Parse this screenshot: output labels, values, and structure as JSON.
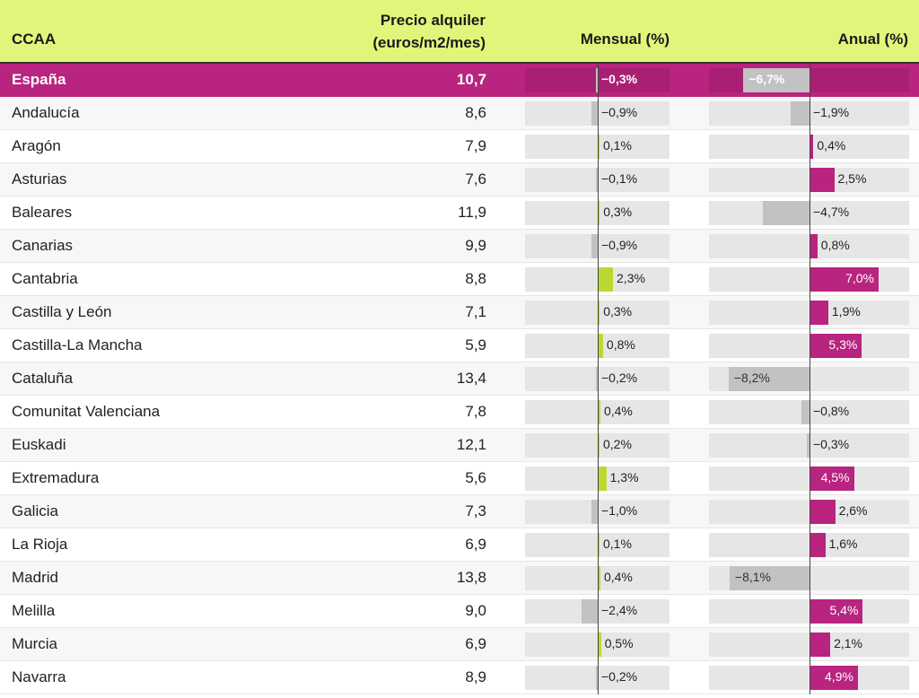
{
  "header": {
    "ccaa": "CCAA",
    "price_line1": "Precio alquiler",
    "price_line2": "(euros/m2/mes)",
    "monthly": "Mensual (%)",
    "annual": "Anual (%)"
  },
  "colors": {
    "header_bg": "#e2f57b",
    "highlight": "#b8247f",
    "positive_monthly": "#b9d930",
    "positive_annual": "#b8247f",
    "negative": "#c2c2c2"
  },
  "chart_data": {
    "type": "table",
    "columns": [
      "CCAA",
      "Precio alquiler (euros/m2/mes)",
      "Mensual (%)",
      "Anual (%)"
    ],
    "rows": [
      {
        "name": "España",
        "price": "10,7",
        "monthly": -0.3,
        "monthly_label": "−0,3%",
        "annual": -6.7,
        "annual_label": "−6,7%",
        "highlight": true
      },
      {
        "name": "Andalucía",
        "price": "8,6",
        "monthly": -0.9,
        "monthly_label": "−0,9%",
        "annual": -1.9,
        "annual_label": "−1,9%"
      },
      {
        "name": "Aragón",
        "price": "7,9",
        "monthly": 0.1,
        "monthly_label": "0,1%",
        "annual": 0.4,
        "annual_label": "0,4%"
      },
      {
        "name": "Asturias",
        "price": "7,6",
        "monthly": -0.1,
        "monthly_label": "−0,1%",
        "annual": 2.5,
        "annual_label": "2,5%"
      },
      {
        "name": "Baleares",
        "price": "11,9",
        "monthly": 0.3,
        "monthly_label": "0,3%",
        "annual": -4.7,
        "annual_label": "−4,7%"
      },
      {
        "name": "Canarias",
        "price": "9,9",
        "monthly": -0.9,
        "monthly_label": "−0,9%",
        "annual": 0.8,
        "annual_label": "0,8%"
      },
      {
        "name": "Cantabria",
        "price": "8,8",
        "monthly": 2.3,
        "monthly_label": "2,3%",
        "annual": 7.0,
        "annual_label": "7,0%"
      },
      {
        "name": "Castilla y León",
        "price": "7,1",
        "monthly": 0.3,
        "monthly_label": "0,3%",
        "annual": 1.9,
        "annual_label": "1,9%"
      },
      {
        "name": "Castilla-La Mancha",
        "price": "5,9",
        "monthly": 0.8,
        "monthly_label": "0,8%",
        "annual": 5.3,
        "annual_label": "5,3%"
      },
      {
        "name": "Cataluña",
        "price": "13,4",
        "monthly": -0.2,
        "monthly_label": "−0,2%",
        "annual": -8.2,
        "annual_label": "−8,2%"
      },
      {
        "name": "Comunitat Valenciana",
        "price": "7,8",
        "monthly": 0.4,
        "monthly_label": "0,4%",
        "annual": -0.8,
        "annual_label": "−0,8%"
      },
      {
        "name": "Euskadi",
        "price": "12,1",
        "monthly": 0.2,
        "monthly_label": "0,2%",
        "annual": -0.3,
        "annual_label": "−0,3%"
      },
      {
        "name": "Extremadura",
        "price": "5,6",
        "monthly": 1.3,
        "monthly_label": "1,3%",
        "annual": 4.5,
        "annual_label": "4,5%"
      },
      {
        "name": "Galicia",
        "price": "7,3",
        "monthly": -1.0,
        "monthly_label": "−1,0%",
        "annual": 2.6,
        "annual_label": "2,6%"
      },
      {
        "name": "La Rioja",
        "price": "6,9",
        "monthly": 0.1,
        "monthly_label": "0,1%",
        "annual": 1.6,
        "annual_label": "1,6%"
      },
      {
        "name": "Madrid",
        "price": "13,8",
        "monthly": 0.4,
        "monthly_label": "0,4%",
        "annual": -8.1,
        "annual_label": "−8,1%"
      },
      {
        "name": "Melilla",
        "price": "9,0",
        "monthly": -2.4,
        "monthly_label": "−2,4%",
        "annual": 5.4,
        "annual_label": "5,4%"
      },
      {
        "name": "Murcia",
        "price": "6,9",
        "monthly": 0.5,
        "monthly_label": "0,5%",
        "annual": 2.1,
        "annual_label": "2,1%"
      },
      {
        "name": "Navarra",
        "price": "8,9",
        "monthly": -0.2,
        "monthly_label": "−0,2%",
        "annual": 4.9,
        "annual_label": "4,9%"
      }
    ]
  }
}
